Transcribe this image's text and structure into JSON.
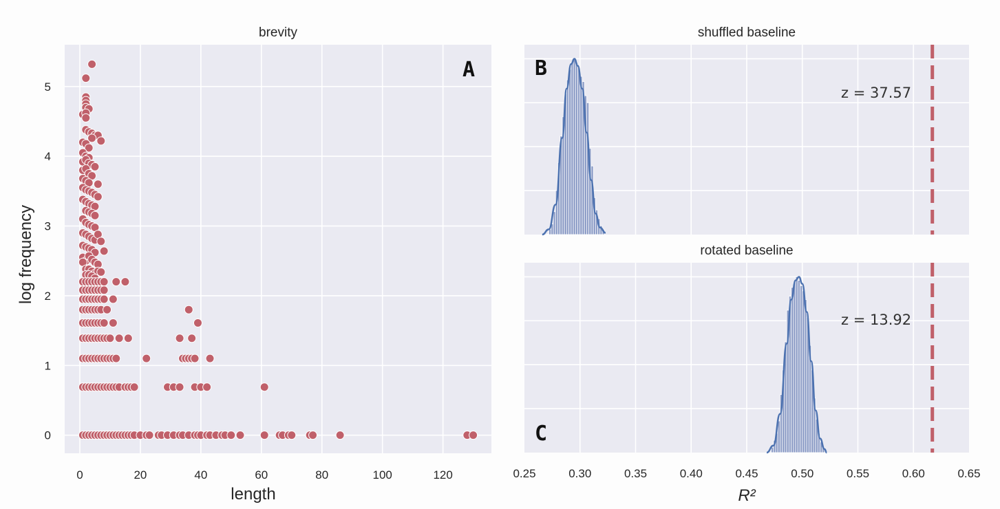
{
  "chart_data": [
    {
      "id": "A",
      "type": "scatter",
      "title": "brevity",
      "panel_letter": "A",
      "xlabel": "length",
      "ylabel": "log frequency",
      "xlim": [
        -5,
        136
      ],
      "ylim": [
        -0.26,
        5.6
      ],
      "xticks": [
        0,
        20,
        40,
        60,
        80,
        100,
        120
      ],
      "yticks": [
        0,
        1,
        2,
        3,
        4,
        5
      ],
      "marker_color": "#c0606a",
      "points": [
        [
          4,
          5.32
        ],
        [
          2,
          5.12
        ],
        [
          2,
          4.85
        ],
        [
          2,
          4.8
        ],
        [
          2,
          4.75
        ],
        [
          2,
          4.7
        ],
        [
          3,
          4.68
        ],
        [
          1,
          4.6
        ],
        [
          2,
          4.62
        ],
        [
          2,
          4.55
        ],
        [
          2,
          4.38
        ],
        [
          3,
          4.35
        ],
        [
          4,
          4.33
        ],
        [
          5,
          4.3
        ],
        [
          6,
          4.3
        ],
        [
          7,
          4.22
        ],
        [
          4,
          4.26
        ],
        [
          1,
          4.2
        ],
        [
          2,
          4.18
        ],
        [
          3,
          4.12
        ],
        [
          1,
          4.05
        ],
        [
          2,
          4.0
        ],
        [
          3,
          3.98
        ],
        [
          1,
          3.92
        ],
        [
          2,
          3.95
        ],
        [
          3,
          3.9
        ],
        [
          4,
          3.88
        ],
        [
          5,
          3.85
        ],
        [
          1,
          3.8
        ],
        [
          2,
          3.82
        ],
        [
          3,
          3.75
        ],
        [
          4,
          3.72
        ],
        [
          1,
          3.68
        ],
        [
          2,
          3.65
        ],
        [
          3,
          3.62
        ],
        [
          6,
          3.6
        ],
        [
          1,
          3.55
        ],
        [
          2,
          3.52
        ],
        [
          3,
          3.5
        ],
        [
          4,
          3.48
        ],
        [
          5,
          3.45
        ],
        [
          6,
          3.42
        ],
        [
          1,
          3.38
        ],
        [
          2,
          3.35
        ],
        [
          3,
          3.32
        ],
        [
          4,
          3.3
        ],
        [
          5,
          3.28
        ],
        [
          2,
          3.22
        ],
        [
          3,
          3.2
        ],
        [
          4,
          3.18
        ],
        [
          5,
          3.15
        ],
        [
          1,
          3.1
        ],
        [
          2,
          3.05
        ],
        [
          3,
          3.02
        ],
        [
          4,
          3.0
        ],
        [
          5,
          2.98
        ],
        [
          1,
          2.9
        ],
        [
          2,
          2.88
        ],
        [
          3,
          2.85
        ],
        [
          4,
          2.82
        ],
        [
          5,
          2.8
        ],
        [
          6,
          2.88
        ],
        [
          7,
          2.78
        ],
        [
          1,
          2.72
        ],
        [
          2,
          2.7
        ],
        [
          3,
          2.68
        ],
        [
          4,
          2.66
        ],
        [
          5,
          2.62
        ],
        [
          8,
          2.64
        ],
        [
          1,
          2.55
        ],
        [
          2,
          2.5
        ],
        [
          3,
          2.57
        ],
        [
          4,
          2.52
        ],
        [
          5,
          2.48
        ],
        [
          6,
          2.45
        ],
        [
          1,
          2.48
        ],
        [
          2,
          2.38
        ],
        [
          3,
          2.38
        ],
        [
          4,
          2.35
        ],
        [
          5,
          2.32
        ],
        [
          6,
          2.35
        ],
        [
          7,
          2.34
        ],
        [
          2,
          2.3
        ],
        [
          3,
          2.3
        ],
        [
          4,
          2.28
        ],
        [
          5,
          2.25
        ],
        [
          1,
          2.2
        ],
        [
          2,
          2.2
        ],
        [
          3,
          2.2
        ],
        [
          4,
          2.2
        ],
        [
          5,
          2.2
        ],
        [
          6,
          2.2
        ],
        [
          7,
          2.2
        ],
        [
          8,
          2.2
        ],
        [
          12,
          2.2
        ],
        [
          15,
          2.2
        ],
        [
          1,
          2.08
        ],
        [
          2,
          2.08
        ],
        [
          3,
          2.08
        ],
        [
          4,
          2.08
        ],
        [
          5,
          2.08
        ],
        [
          6,
          2.08
        ],
        [
          7,
          2.08
        ],
        [
          8,
          2.08
        ],
        [
          1,
          1.95
        ],
        [
          2,
          1.95
        ],
        [
          3,
          1.95
        ],
        [
          4,
          1.95
        ],
        [
          5,
          1.95
        ],
        [
          6,
          1.95
        ],
        [
          7,
          1.95
        ],
        [
          8,
          1.95
        ],
        [
          11,
          1.95
        ],
        [
          1,
          1.8
        ],
        [
          2,
          1.8
        ],
        [
          3,
          1.8
        ],
        [
          4,
          1.8
        ],
        [
          5,
          1.8
        ],
        [
          6,
          1.8
        ],
        [
          7,
          1.8
        ],
        [
          9,
          1.8
        ],
        [
          36,
          1.8
        ],
        [
          1,
          1.61
        ],
        [
          2,
          1.61
        ],
        [
          3,
          1.61
        ],
        [
          4,
          1.61
        ],
        [
          5,
          1.61
        ],
        [
          6,
          1.61
        ],
        [
          7,
          1.61
        ],
        [
          8,
          1.61
        ],
        [
          11,
          1.61
        ],
        [
          39,
          1.61
        ],
        [
          1,
          1.39
        ],
        [
          2,
          1.39
        ],
        [
          3,
          1.39
        ],
        [
          4,
          1.39
        ],
        [
          5,
          1.39
        ],
        [
          6,
          1.39
        ],
        [
          7,
          1.39
        ],
        [
          8,
          1.39
        ],
        [
          9,
          1.39
        ],
        [
          10,
          1.39
        ],
        [
          13,
          1.39
        ],
        [
          16,
          1.39
        ],
        [
          33,
          1.39
        ],
        [
          37,
          1.39
        ],
        [
          1,
          1.1
        ],
        [
          2,
          1.1
        ],
        [
          3,
          1.1
        ],
        [
          4,
          1.1
        ],
        [
          5,
          1.1
        ],
        [
          6,
          1.1
        ],
        [
          7,
          1.1
        ],
        [
          8,
          1.1
        ],
        [
          9,
          1.1
        ],
        [
          10,
          1.1
        ],
        [
          11,
          1.1
        ],
        [
          12,
          1.1
        ],
        [
          22,
          1.1
        ],
        [
          34,
          1.1
        ],
        [
          35,
          1.1
        ],
        [
          36,
          1.1
        ],
        [
          37,
          1.1
        ],
        [
          38,
          1.1
        ],
        [
          43,
          1.1
        ],
        [
          1,
          0.69
        ],
        [
          2,
          0.69
        ],
        [
          3,
          0.69
        ],
        [
          4,
          0.69
        ],
        [
          5,
          0.69
        ],
        [
          6,
          0.69
        ],
        [
          7,
          0.69
        ],
        [
          8,
          0.69
        ],
        [
          9,
          0.69
        ],
        [
          10,
          0.69
        ],
        [
          11,
          0.69
        ],
        [
          12,
          0.69
        ],
        [
          13,
          0.69
        ],
        [
          15,
          0.69
        ],
        [
          16,
          0.69
        ],
        [
          17,
          0.69
        ],
        [
          18,
          0.69
        ],
        [
          29,
          0.69
        ],
        [
          31,
          0.69
        ],
        [
          33,
          0.69
        ],
        [
          38,
          0.69
        ],
        [
          40,
          0.69
        ],
        [
          42,
          0.69
        ],
        [
          61,
          0.69
        ],
        [
          1,
          0
        ],
        [
          2,
          0
        ],
        [
          3,
          0
        ],
        [
          4,
          0
        ],
        [
          5,
          0
        ],
        [
          6,
          0
        ],
        [
          7,
          0
        ],
        [
          8,
          0
        ],
        [
          9,
          0
        ],
        [
          10,
          0
        ],
        [
          11,
          0
        ],
        [
          12,
          0
        ],
        [
          13,
          0
        ],
        [
          14,
          0
        ],
        [
          15,
          0
        ],
        [
          16,
          0
        ],
        [
          17,
          0
        ],
        [
          18,
          0
        ],
        [
          20,
          0
        ],
        [
          22,
          0
        ],
        [
          23,
          0
        ],
        [
          26,
          0
        ],
        [
          27,
          0
        ],
        [
          29,
          0
        ],
        [
          31,
          0
        ],
        [
          33,
          0
        ],
        [
          34,
          0
        ],
        [
          36,
          0
        ],
        [
          38,
          0
        ],
        [
          39,
          0
        ],
        [
          40,
          0
        ],
        [
          42,
          0
        ],
        [
          43,
          0
        ],
        [
          45,
          0
        ],
        [
          47,
          0
        ],
        [
          48,
          0
        ],
        [
          50,
          0
        ],
        [
          53,
          0
        ],
        [
          61,
          0
        ],
        [
          66,
          0
        ],
        [
          67,
          0
        ],
        [
          69,
          0
        ],
        [
          70,
          0
        ],
        [
          76,
          0
        ],
        [
          77,
          0
        ],
        [
          86,
          0
        ],
        [
          128,
          0
        ],
        [
          130,
          0
        ]
      ]
    },
    {
      "id": "B",
      "type": "histogram+kde",
      "title": "shuffled baseline",
      "panel_letter": "B",
      "xlim": [
        0.25,
        0.65
      ],
      "ylim": [
        0,
        1.08
      ],
      "bins": [
        [
          0.27,
          0.002
        ],
        [
          0.272,
          0.03
        ],
        [
          0.274,
          0.06
        ],
        [
          0.276,
          0.13
        ],
        [
          0.278,
          0.25
        ],
        [
          0.28,
          0.41
        ],
        [
          0.282,
          0.56
        ],
        [
          0.284,
          0.67
        ],
        [
          0.286,
          0.8
        ],
        [
          0.288,
          0.88
        ],
        [
          0.29,
          0.94
        ],
        [
          0.292,
          0.98
        ],
        [
          0.294,
          1.0
        ],
        [
          0.296,
          0.98
        ],
        [
          0.298,
          0.95
        ],
        [
          0.3,
          0.9
        ],
        [
          0.302,
          0.87
        ],
        [
          0.304,
          0.79
        ],
        [
          0.306,
          0.75
        ],
        [
          0.308,
          0.49
        ],
        [
          0.31,
          0.39
        ],
        [
          0.312,
          0.21
        ],
        [
          0.314,
          0.14
        ],
        [
          0.316,
          0.09
        ],
        [
          0.318,
          0.05
        ],
        [
          0.32,
          0.03
        ]
      ],
      "bin_width": 0.002,
      "kde": [
        [
          0.266,
          0
        ],
        [
          0.272,
          0.03
        ],
        [
          0.278,
          0.17
        ],
        [
          0.284,
          0.55
        ],
        [
          0.288,
          0.83
        ],
        [
          0.292,
          0.97
        ],
        [
          0.295,
          1.0
        ],
        [
          0.298,
          0.96
        ],
        [
          0.302,
          0.83
        ],
        [
          0.306,
          0.58
        ],
        [
          0.31,
          0.31
        ],
        [
          0.314,
          0.12
        ],
        [
          0.318,
          0.04
        ],
        [
          0.323,
          0.01
        ]
      ],
      "observed_line": 0.617,
      "annotation": "z = 37.57"
    },
    {
      "id": "C",
      "type": "histogram+kde",
      "title": "rotated baseline",
      "panel_letter": "C",
      "xlabel": "R²",
      "xlim": [
        0.25,
        0.65
      ],
      "ylim": [
        0,
        1.08
      ],
      "xticks": [
        0.25,
        0.3,
        0.35,
        0.4,
        0.45,
        0.5,
        0.55,
        0.6,
        0.65
      ],
      "xtick_labels": [
        "0.25",
        "0.30",
        "0.35",
        "0.40",
        "0.45",
        "0.50",
        "0.55",
        "0.60",
        "0.65"
      ],
      "bins": [
        [
          0.472,
          0.03
        ],
        [
          0.474,
          0.07
        ],
        [
          0.476,
          0.11
        ],
        [
          0.478,
          0.18
        ],
        [
          0.48,
          0.33
        ],
        [
          0.482,
          0.47
        ],
        [
          0.484,
          0.63
        ],
        [
          0.486,
          0.81
        ],
        [
          0.488,
          0.89
        ],
        [
          0.49,
          0.94
        ],
        [
          0.492,
          0.97
        ],
        [
          0.494,
          1.0
        ],
        [
          0.496,
          0.98
        ],
        [
          0.498,
          0.95
        ],
        [
          0.5,
          0.92
        ],
        [
          0.502,
          0.87
        ],
        [
          0.504,
          0.77
        ],
        [
          0.506,
          0.61
        ],
        [
          0.508,
          0.47
        ],
        [
          0.51,
          0.31
        ],
        [
          0.512,
          0.19
        ],
        [
          0.514,
          0.11
        ],
        [
          0.516,
          0.06
        ],
        [
          0.518,
          0.03
        ]
      ],
      "bin_width": 0.002,
      "kde": [
        [
          0.468,
          0
        ],
        [
          0.474,
          0.04
        ],
        [
          0.48,
          0.22
        ],
        [
          0.486,
          0.62
        ],
        [
          0.49,
          0.87
        ],
        [
          0.494,
          0.98
        ],
        [
          0.497,
          1.0
        ],
        [
          0.5,
          0.96
        ],
        [
          0.504,
          0.8
        ],
        [
          0.508,
          0.52
        ],
        [
          0.512,
          0.24
        ],
        [
          0.516,
          0.08
        ],
        [
          0.52,
          0.02
        ],
        [
          0.522,
          0
        ]
      ],
      "observed_line": 0.617,
      "annotation": "z = 13.92"
    }
  ]
}
